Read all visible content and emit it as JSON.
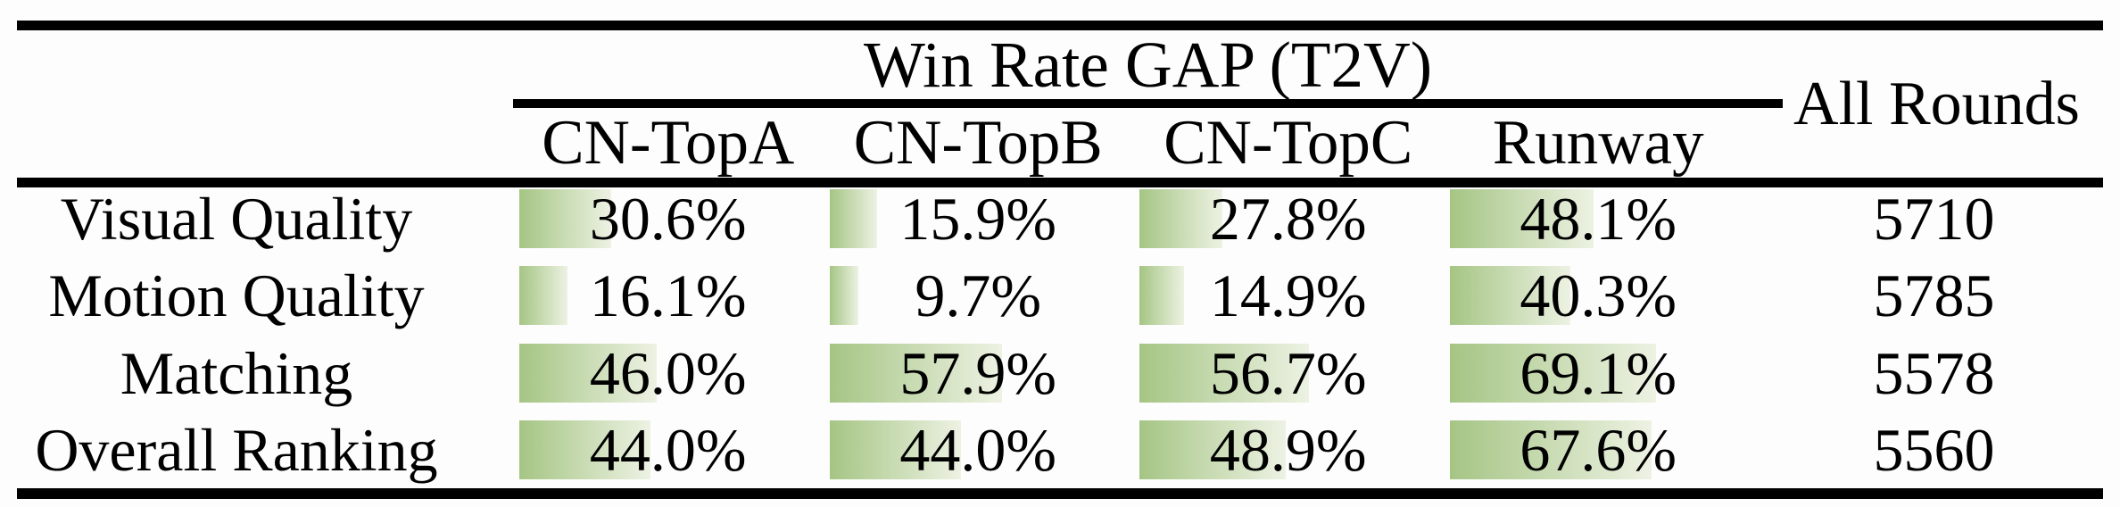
{
  "table": {
    "header": {
      "group_title": "Win Rate GAP (T2V)",
      "all_rounds": "All Rounds",
      "columns": [
        "CN-TopA",
        "CN-TopB",
        "CN-TopC",
        "Runway"
      ]
    },
    "rows": [
      {
        "label": "Visual Quality",
        "cells": [
          {
            "display": "30.6%",
            "value": 30.6
          },
          {
            "display": "15.9%",
            "value": 15.9
          },
          {
            "display": "27.8%",
            "value": 27.8
          },
          {
            "display": "48.1%",
            "value": 48.1
          }
        ],
        "all_rounds": "5710"
      },
      {
        "label": "Motion Quality",
        "cells": [
          {
            "display": "16.1%",
            "value": 16.1
          },
          {
            "display": "9.7%",
            "value": 9.7
          },
          {
            "display": "14.9%",
            "value": 14.9
          },
          {
            "display": "40.3%",
            "value": 40.3
          }
        ],
        "all_rounds": "5785"
      },
      {
        "label": "Matching",
        "cells": [
          {
            "display": "46.0%",
            "value": 46.0
          },
          {
            "display": "57.9%",
            "value": 57.9
          },
          {
            "display": "56.7%",
            "value": 56.7
          },
          {
            "display": "69.1%",
            "value": 69.1
          }
        ],
        "all_rounds": "5578"
      },
      {
        "label": "Overall Ranking",
        "cells": [
          {
            "display": "44.0%",
            "value": 44.0
          },
          {
            "display": "44.0%",
            "value": 44.0
          },
          {
            "display": "48.9%",
            "value": 48.9
          },
          {
            "display": "67.6%",
            "value": 67.6
          }
        ],
        "all_rounds": "5560"
      }
    ],
    "style": {
      "bar_gradient_start": "#a5c584",
      "bar_gradient_end": "#edf2e3",
      "rule_color": "#000000",
      "text_color": "#000000",
      "background": "#fdfdfd"
    }
  },
  "chart_data": {
    "type": "table",
    "title": "Win Rate GAP (T2V)",
    "columns": [
      "CN-TopA",
      "CN-TopB",
      "CN-TopC",
      "Runway",
      "All Rounds"
    ],
    "row_labels": [
      "Visual Quality",
      "Motion Quality",
      "Matching",
      "Overall Ranking"
    ],
    "series": [
      {
        "name": "Visual Quality",
        "values": [
          30.6,
          15.9,
          27.8,
          48.1
        ],
        "all_rounds": 5710
      },
      {
        "name": "Motion Quality",
        "values": [
          16.1,
          9.7,
          14.9,
          40.3
        ],
        "all_rounds": 5785
      },
      {
        "name": "Matching",
        "values": [
          46.0,
          57.9,
          56.7,
          69.1
        ],
        "all_rounds": 5578
      },
      {
        "name": "Overall Ranking",
        "values": [
          44.0,
          44.0,
          48.9,
          67.6
        ],
        "all_rounds": 5560
      }
    ],
    "value_unit": "percent",
    "bars": "in-cell horizontal data bars, green gradient, length proportional to value"
  }
}
